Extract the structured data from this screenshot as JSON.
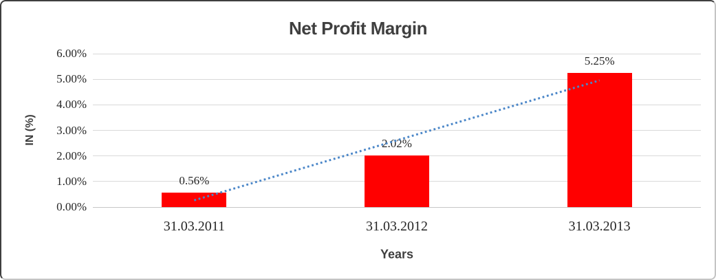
{
  "chart_data": {
    "type": "bar",
    "title": "Net Profit Margin",
    "xlabel": "Years",
    "ylabel": "IN (%)",
    "categories": [
      "31.03.2011",
      "31.03.2012",
      "31.03.2013"
    ],
    "values": [
      0.56,
      2.02,
      5.25
    ],
    "data_labels": [
      "0.56%",
      "2.02%",
      "5.25%"
    ],
    "ylim": [
      0,
      6
    ],
    "yticks": [
      0,
      1,
      2,
      3,
      4,
      5,
      6
    ],
    "ytick_labels": [
      "0.00%",
      "1.00%",
      "2.00%",
      "3.00%",
      "4.00%",
      "5.00%",
      "6.00%"
    ],
    "grid": true,
    "legend": "none",
    "bar_color": "#ff0000",
    "trendline": {
      "type": "linear",
      "style": "dotted",
      "color": "#4a86c8"
    }
  },
  "colors": {
    "title": "#3f3f3f",
    "axis_title": "#3f3f3f",
    "tick_label": "#262626",
    "gridline": "#d9d9d9",
    "baseline": "#c6c6c6",
    "bar": "#ff0000",
    "trendline": "#4a86c8",
    "background": "#ffffff"
  }
}
